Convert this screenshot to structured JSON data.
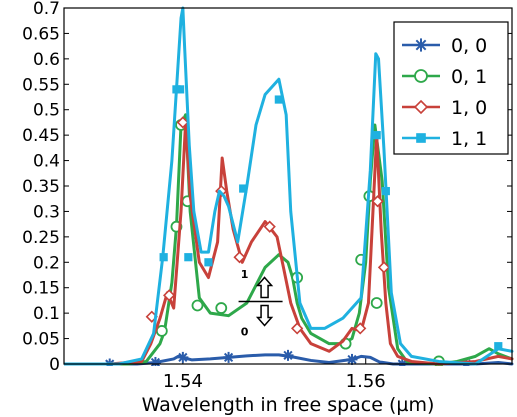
{
  "chart_data": {
    "type": "line",
    "xlabel": "Wavelength in free space (µm)",
    "ylabel": "",
    "xlim": [
      1.527,
      1.576
    ],
    "ylim": [
      0,
      0.7
    ],
    "x_ticks": [
      1.54,
      1.56
    ],
    "x_tick_labels": [
      "1.54",
      "1.56"
    ],
    "y_ticks": [
      0,
      0.05,
      0.1,
      0.15,
      0.2,
      0.25,
      0.3,
      0.35,
      0.4,
      0.45,
      0.5,
      0.55,
      0.6,
      0.65,
      0.7
    ],
    "y_tick_labels": [
      "0",
      "0.05",
      "0.1",
      "0.15",
      "0.2",
      "0.25",
      "0.3",
      "0.35",
      "0.4",
      "0.45",
      "0.5",
      "0.55",
      "0.6",
      "0.65",
      "0.7"
    ],
    "grid": false,
    "legend_position": "top-right",
    "annotation": {
      "label_top": "1",
      "label_bottom": "0",
      "x": 1.5485,
      "y_top": 0.165,
      "y_line": 0.123,
      "y_bottom": 0.08
    },
    "series": [
      {
        "name": "0, 0",
        "color": "#2a5caa",
        "marker": "asterisk",
        "x": [
          1.527,
          1.53,
          1.533,
          1.535,
          1.537,
          1.539,
          1.5395,
          1.54,
          1.541,
          1.543,
          1.545,
          1.547,
          1.549,
          1.5505,
          1.552,
          1.554,
          1.556,
          1.5585,
          1.5595,
          1.5605,
          1.5615,
          1.563,
          1.566,
          1.569,
          1.572,
          1.5745,
          1.576
        ],
        "y": [
          0.0,
          0.0,
          0.0,
          0.0,
          0.003,
          0.01,
          0.015,
          0.013,
          0.008,
          0.01,
          0.013,
          0.016,
          0.018,
          0.018,
          0.014,
          0.007,
          0.003,
          0.009,
          0.015,
          0.013,
          0.004,
          0.0,
          0.0,
          0.0,
          0.0,
          0.003,
          0.0
        ],
        "markers_x": [
          1.532,
          1.537,
          1.54,
          1.545,
          1.5515,
          1.5585,
          1.564,
          1.571
        ],
        "markers_y": [
          0.0,
          0.003,
          0.013,
          0.013,
          0.017,
          0.009,
          0.0,
          0.0
        ]
      },
      {
        "name": "0, 1",
        "color": "#2ea84a",
        "marker": "circle",
        "x": [
          1.527,
          1.534,
          1.536,
          1.5375,
          1.538,
          1.5388,
          1.5393,
          1.5398,
          1.5403,
          1.5408,
          1.5418,
          1.543,
          1.545,
          1.547,
          1.549,
          1.5505,
          1.5515,
          1.552,
          1.5525,
          1.553,
          1.554,
          1.556,
          1.5575,
          1.5585,
          1.5593,
          1.56,
          1.5605,
          1.561,
          1.5618,
          1.5625,
          1.5635,
          1.5645,
          1.5655,
          1.568,
          1.57,
          1.572,
          1.5735,
          1.5745,
          1.576
        ],
        "y": [
          0.0,
          0.0,
          0.005,
          0.04,
          0.065,
          0.16,
          0.27,
          0.47,
          0.49,
          0.3,
          0.13,
          0.1,
          0.095,
          0.12,
          0.19,
          0.215,
          0.2,
          0.17,
          0.12,
          0.09,
          0.06,
          0.04,
          0.04,
          0.05,
          0.1,
          0.2,
          0.36,
          0.47,
          0.36,
          0.15,
          0.03,
          0.005,
          0.002,
          0.0,
          0.005,
          0.015,
          0.03,
          0.02,
          0.01
        ],
        "markers_x": [
          1.5377,
          1.5393,
          1.5398,
          1.5405,
          1.5416,
          1.5442,
          1.5525,
          1.5578,
          1.5595,
          1.5604,
          1.5612,
          1.568
        ],
        "markers_y": [
          0.065,
          0.27,
          0.47,
          0.32,
          0.115,
          0.11,
          0.17,
          0.04,
          0.205,
          0.33,
          0.12,
          0.005
        ]
      },
      {
        "name": "1, 0",
        "color": "#c8413a",
        "marker": "diamond",
        "x": [
          1.527,
          1.532,
          1.5355,
          1.5365,
          1.5375,
          1.5383,
          1.539,
          1.5398,
          1.5403,
          1.5408,
          1.5418,
          1.5428,
          1.5438,
          1.5443,
          1.5448,
          1.5455,
          1.5465,
          1.5475,
          1.549,
          1.5503,
          1.551,
          1.5518,
          1.5528,
          1.554,
          1.556,
          1.5575,
          1.5585,
          1.5595,
          1.5603,
          1.5612,
          1.5617,
          1.5622,
          1.5627,
          1.5635,
          1.565,
          1.568,
          1.572,
          1.5745,
          1.576
        ],
        "y": [
          0.0,
          0.0,
          0.005,
          0.04,
          0.09,
          0.14,
          0.11,
          0.3,
          0.475,
          0.33,
          0.2,
          0.17,
          0.24,
          0.405,
          0.34,
          0.265,
          0.2,
          0.24,
          0.28,
          0.25,
          0.19,
          0.12,
          0.07,
          0.04,
          0.025,
          0.045,
          0.07,
          0.065,
          0.12,
          0.45,
          0.26,
          0.12,
          0.04,
          0.015,
          0.005,
          0.0,
          0.005,
          0.015,
          0.01
        ],
        "markers_x": [
          1.5366,
          1.5385,
          1.54,
          1.5442,
          1.5462,
          1.5495,
          1.5525,
          1.5594,
          1.5613,
          1.562
        ],
        "markers_y": [
          0.093,
          0.135,
          0.475,
          0.34,
          0.21,
          0.27,
          0.07,
          0.07,
          0.32,
          0.19
        ]
      },
      {
        "name": "1, 1",
        "color": "#1fb1e0",
        "marker": "square",
        "x": [
          1.527,
          1.533,
          1.5355,
          1.5368,
          1.5378,
          1.5388,
          1.5393,
          1.5398,
          1.54,
          1.5402,
          1.5407,
          1.5412,
          1.542,
          1.5428,
          1.5435,
          1.544,
          1.5445,
          1.545,
          1.546,
          1.547,
          1.548,
          1.549,
          1.5505,
          1.5513,
          1.5518,
          1.5528,
          1.554,
          1.5555,
          1.5575,
          1.5595,
          1.5605,
          1.5611,
          1.5614,
          1.562,
          1.5628,
          1.5638,
          1.565,
          1.568,
          1.572,
          1.5745,
          1.576
        ],
        "y": [
          0.0,
          0.0,
          0.01,
          0.06,
          0.21,
          0.4,
          0.54,
          0.68,
          0.7,
          0.62,
          0.43,
          0.3,
          0.22,
          0.22,
          0.3,
          0.34,
          0.33,
          0.31,
          0.24,
          0.35,
          0.47,
          0.53,
          0.56,
          0.49,
          0.3,
          0.12,
          0.07,
          0.07,
          0.09,
          0.13,
          0.38,
          0.61,
          0.6,
          0.42,
          0.14,
          0.04,
          0.015,
          0.005,
          0.0,
          0.03,
          0.025
        ],
        "markers_x": [
          1.5379,
          1.5393,
          1.5397,
          1.5406,
          1.5428,
          1.5466,
          1.5505,
          1.5612,
          1.5622,
          1.5745
        ],
        "markers_y": [
          0.21,
          0.54,
          0.54,
          0.21,
          0.2,
          0.345,
          0.52,
          0.45,
          0.34,
          0.035
        ]
      }
    ]
  }
}
